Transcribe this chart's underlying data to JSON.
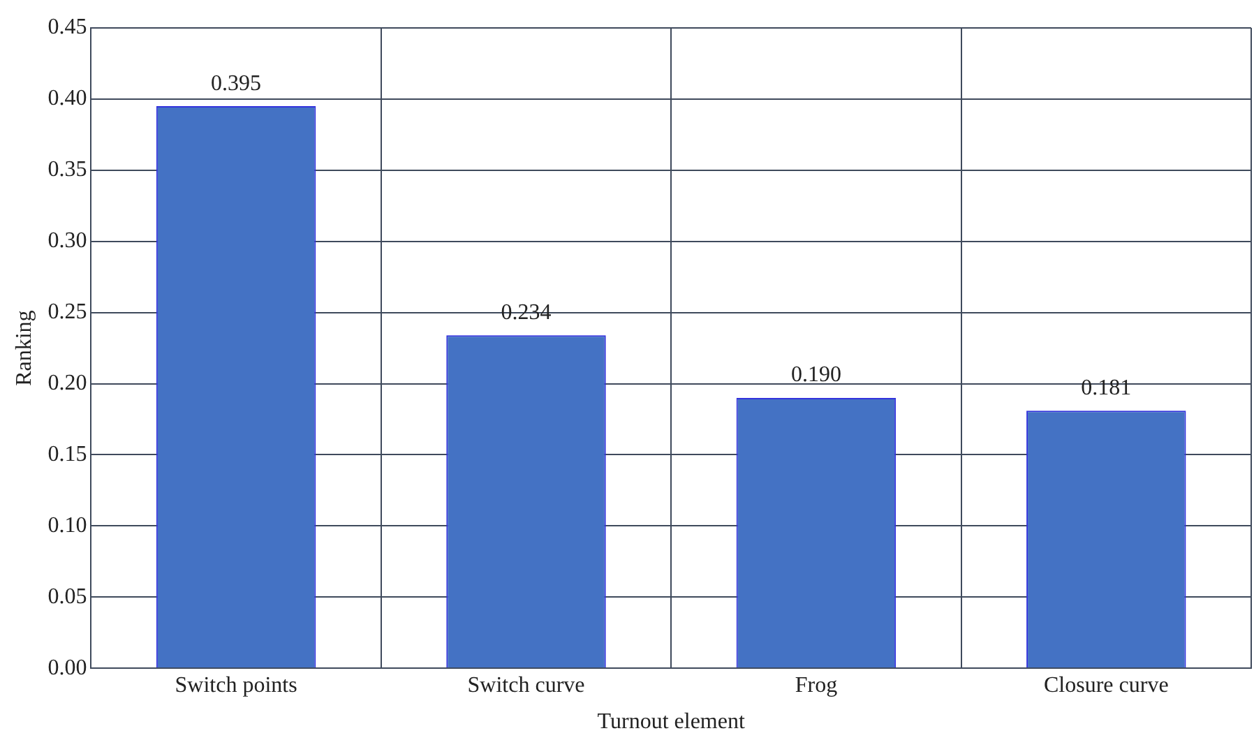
{
  "chart_data": {
    "type": "bar",
    "xlabel": "Turnout element",
    "ylabel": "Ranking",
    "categories": [
      "Switch points",
      "Switch curve",
      "Frog",
      "Closure curve"
    ],
    "values": [
      0.395,
      0.234,
      0.19,
      0.181
    ],
    "value_labels": [
      "0.395",
      "0.234",
      "0.190",
      "0.181"
    ],
    "color": "#4472c4",
    "ylim": [
      0,
      0.45
    ],
    "yticks": [
      {
        "value": 0,
        "label": "0.00"
      },
      {
        "value": 0.05,
        "label": "0.05"
      },
      {
        "value": 0.1,
        "label": "0.10"
      },
      {
        "value": 0.15,
        "label": "0.15"
      },
      {
        "value": 0.2,
        "label": "0.20"
      },
      {
        "value": 0.25,
        "label": "0.25"
      },
      {
        "value": 0.3,
        "label": "0.30"
      },
      {
        "value": 0.35,
        "label": "0.35"
      },
      {
        "value": 0.4,
        "label": "0.40"
      },
      {
        "value": 0.45,
        "label": "0.45"
      }
    ],
    "grid": true,
    "legend": false
  }
}
